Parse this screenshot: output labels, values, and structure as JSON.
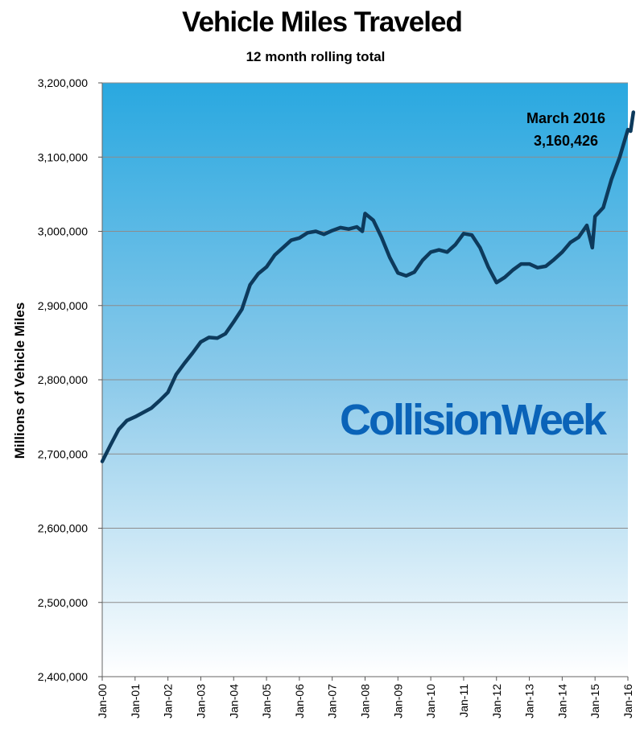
{
  "chart_data": {
    "type": "line",
    "title": "Vehicle Miles Traveled",
    "subtitle": "12 month rolling total",
    "ylabel": "Millions of Vehicle Miles",
    "xlabel": "",
    "ylim": [
      2400000,
      3200000
    ],
    "y_ticks": [
      "2,400,000",
      "2,500,000",
      "2,600,000",
      "2,700,000",
      "2,800,000",
      "2,900,000",
      "3,000,000",
      "3,100,000",
      "3,200,000"
    ],
    "x_ticks": [
      "Jan-00",
      "Jan-01",
      "Jan-02",
      "Jan-03",
      "Jan-04",
      "Jan-05",
      "Jan-06",
      "Jan-07",
      "Jan-08",
      "Jan-09",
      "Jan-10",
      "Jan-11",
      "Jan-12",
      "Jan-13",
      "Jan-14",
      "Jan-15",
      "Jan-16"
    ],
    "grid": true,
    "legend": "none",
    "annotation": {
      "line1": "March 2016",
      "line2": "3,160,426"
    },
    "series": [
      {
        "color": "#0d3a5c",
        "points": [
          [
            "2000-01",
            2690000
          ],
          [
            "2000-04",
            2712000
          ],
          [
            "2000-07",
            2733000
          ],
          [
            "2000-10",
            2745000
          ],
          [
            "2001-01",
            2750000
          ],
          [
            "2001-04",
            2756000
          ],
          [
            "2001-07",
            2762000
          ],
          [
            "2001-10",
            2772000
          ],
          [
            "2002-01",
            2783000
          ],
          [
            "2002-04",
            2807000
          ],
          [
            "2002-07",
            2822000
          ],
          [
            "2002-10",
            2836000
          ],
          [
            "2003-01",
            2851000
          ],
          [
            "2003-04",
            2857000
          ],
          [
            "2003-07",
            2856000
          ],
          [
            "2003-10",
            2862000
          ],
          [
            "2004-01",
            2878000
          ],
          [
            "2004-04",
            2895000
          ],
          [
            "2004-07",
            2928000
          ],
          [
            "2004-10",
            2943000
          ],
          [
            "2005-01",
            2952000
          ],
          [
            "2005-04",
            2968000
          ],
          [
            "2005-07",
            2978000
          ],
          [
            "2005-10",
            2988000
          ],
          [
            "2006-01",
            2991000
          ],
          [
            "2006-04",
            2998000
          ],
          [
            "2006-07",
            3000000
          ],
          [
            "2006-10",
            2996000
          ],
          [
            "2007-01",
            3001000
          ],
          [
            "2007-04",
            3005000
          ],
          [
            "2007-07",
            3003000
          ],
          [
            "2007-10",
            3006000
          ],
          [
            "2007-12",
            3000000
          ],
          [
            "2008-01",
            3024000
          ],
          [
            "2008-04",
            3015000
          ],
          [
            "2008-07",
            2992000
          ],
          [
            "2008-10",
            2965000
          ],
          [
            "2009-01",
            2944000
          ],
          [
            "2009-04",
            2940000
          ],
          [
            "2009-07",
            2945000
          ],
          [
            "2009-10",
            2961000
          ],
          [
            "2010-01",
            2972000
          ],
          [
            "2010-04",
            2975000
          ],
          [
            "2010-07",
            2972000
          ],
          [
            "2010-10",
            2982000
          ],
          [
            "2011-01",
            2997000
          ],
          [
            "2011-04",
            2995000
          ],
          [
            "2011-07",
            2978000
          ],
          [
            "2011-10",
            2952000
          ],
          [
            "2012-01",
            2931000
          ],
          [
            "2012-04",
            2938000
          ],
          [
            "2012-07",
            2948000
          ],
          [
            "2012-10",
            2956000
          ],
          [
            "2013-01",
            2956000
          ],
          [
            "2013-04",
            2951000
          ],
          [
            "2013-07",
            2953000
          ],
          [
            "2013-10",
            2962000
          ],
          [
            "2014-01",
            2972000
          ],
          [
            "2014-04",
            2985000
          ],
          [
            "2014-07",
            2992000
          ],
          [
            "2014-10",
            3008000
          ],
          [
            "2014-12",
            2978000
          ],
          [
            "2015-01",
            3020000
          ],
          [
            "2015-04",
            3032000
          ],
          [
            "2015-07",
            3070000
          ],
          [
            "2015-10",
            3100000
          ],
          [
            "2016-01",
            3137000
          ],
          [
            "2016-02",
            3135000
          ],
          [
            "2016-03",
            3160426
          ]
        ]
      }
    ]
  },
  "watermark": "CollisionWeek",
  "colors": {
    "gradient_top": "#29a8e0",
    "gradient_bottom": "#ffffff",
    "line": "#0d3a5c",
    "watermark": "#0a63b8",
    "grid": "#8c8c8c"
  }
}
